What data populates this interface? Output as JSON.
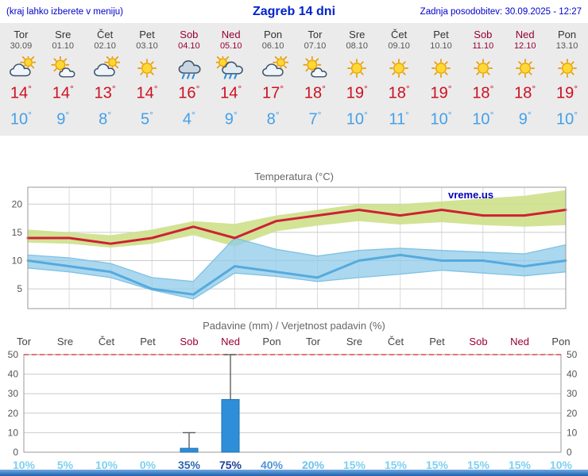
{
  "header": {
    "hint": "(kraj lahko izberete v meniju)",
    "title": "Zagreb 14 dni",
    "updated": "Zadnja posodobitev: 30.09.2025 - 12:27"
  },
  "units": {
    "degree": "°"
  },
  "colors": {
    "accent_blue": "#0000CC",
    "weekend": "#990033",
    "high_temp": "#CC1122",
    "low_temp": "#44A0E8",
    "max_line": "#CC2233",
    "max_band": "#CDE08A",
    "min_line": "#55AADF",
    "min_band": "#8FCBE8",
    "bar_fill": "#2E8FD8",
    "bar_stroke": "#1A6FB5",
    "limit_line": "#E04848",
    "watermark_blue": "#0000BB"
  },
  "forecast": {
    "days": [
      {
        "name": "Tor",
        "date": "30.09",
        "icon": "cloud-sun",
        "high": 14,
        "low": 10,
        "weekend": false
      },
      {
        "name": "Sre",
        "date": "01.10",
        "icon": "sun-cloud",
        "high": 14,
        "low": 9,
        "weekend": false
      },
      {
        "name": "Čet",
        "date": "02.10",
        "icon": "cloud-sun",
        "high": 13,
        "low": 8,
        "weekend": false
      },
      {
        "name": "Pet",
        "date": "03.10",
        "icon": "sun",
        "high": 14,
        "low": 5,
        "weekend": false
      },
      {
        "name": "Sob",
        "date": "04.10",
        "icon": "rain",
        "high": 16,
        "low": 4,
        "weekend": true
      },
      {
        "name": "Ned",
        "date": "05.10",
        "icon": "rain-sun",
        "high": 14,
        "low": 9,
        "weekend": true
      },
      {
        "name": "Pon",
        "date": "06.10",
        "icon": "cloud-sun",
        "high": 17,
        "low": 8,
        "weekend": false
      },
      {
        "name": "Tor",
        "date": "07.10",
        "icon": "sun-cloud",
        "high": 18,
        "low": 7,
        "weekend": false
      },
      {
        "name": "Sre",
        "date": "08.10",
        "icon": "sun",
        "high": 19,
        "low": 10,
        "weekend": false
      },
      {
        "name": "Čet",
        "date": "09.10",
        "icon": "sun",
        "high": 18,
        "low": 11,
        "weekend": false
      },
      {
        "name": "Pet",
        "date": "10.10",
        "icon": "sun",
        "high": 19,
        "low": 10,
        "weekend": false
      },
      {
        "name": "Sob",
        "date": "11.10",
        "icon": "sun",
        "high": 18,
        "low": 10,
        "weekend": true
      },
      {
        "name": "Ned",
        "date": "12.10",
        "icon": "sun",
        "high": 18,
        "low": 9,
        "weekend": true
      },
      {
        "name": "Pon",
        "date": "13.10",
        "icon": "sun",
        "high": 19,
        "low": 10,
        "weekend": false
      }
    ]
  },
  "chart_data": [
    {
      "type": "line",
      "title": "Temperatura (°C)",
      "watermark": "vreme.us",
      "categories": [
        "Tor",
        "Sre",
        "Čet",
        "Pet",
        "Sob",
        "Ned",
        "Pon",
        "Tor",
        "Sre",
        "Čet",
        "Pet",
        "Sob",
        "Ned",
        "Pon"
      ],
      "ylim": [
        1.5,
        23
      ],
      "yticks": [
        5,
        10,
        15,
        20
      ],
      "grid": true,
      "legend": "none",
      "series": [
        {
          "name": "max",
          "values": [
            14,
            14,
            13,
            14,
            16,
            14,
            17,
            18,
            19,
            18,
            19,
            18,
            18,
            19
          ]
        },
        {
          "name": "max_band_upper",
          "values": [
            15.5,
            15,
            14.5,
            15.5,
            17,
            16.5,
            18,
            19,
            20,
            20,
            20.5,
            21,
            21.5,
            22.5
          ]
        },
        {
          "name": "max_band_lower",
          "values": [
            13.2,
            13,
            12.3,
            13,
            14.5,
            12.5,
            15.2,
            16.2,
            17,
            16.4,
            16.8,
            16.3,
            16,
            16.3
          ]
        },
        {
          "name": "min",
          "values": [
            10,
            9,
            8,
            5,
            4,
            9,
            8,
            7,
            10,
            11,
            10,
            10,
            9,
            10
          ]
        },
        {
          "name": "min_band_upper",
          "values": [
            11,
            10.5,
            9.5,
            7,
            6.3,
            14,
            12,
            10.8,
            11.8,
            12.2,
            11.8,
            11.5,
            11.2,
            12.8
          ]
        },
        {
          "name": "min_band_lower",
          "values": [
            8.7,
            8,
            7,
            4.8,
            3.2,
            7.8,
            7.2,
            6.3,
            7,
            7.6,
            8.3,
            7.8,
            7.3,
            8
          ]
        }
      ]
    },
    {
      "type": "bar",
      "title": "Padavine (mm) / Verjetnost padavin (%)",
      "categories": [
        "Tor",
        "Sre",
        "Čet",
        "Pet",
        "Sob",
        "Ned",
        "Pon",
        "Tor",
        "Sre",
        "Čet",
        "Pet",
        "Sob",
        "Ned",
        "Pon"
      ],
      "ylim": [
        0,
        50
      ],
      "yticks": [
        0,
        10,
        20,
        30,
        40,
        50
      ],
      "precip_mm": [
        0,
        0,
        0,
        0,
        2,
        27,
        0,
        0,
        0,
        0,
        0,
        0,
        0,
        0
      ],
      "precip_max_mm": [
        0,
        0,
        0,
        0,
        10,
        50,
        0,
        0,
        0,
        0,
        0,
        0,
        0,
        0
      ],
      "probability": [
        {
          "text": "10%",
          "color": "#7CD0F0"
        },
        {
          "text": "5%",
          "color": "#7CD0F0"
        },
        {
          "text": "10%",
          "color": "#7CD0F0"
        },
        {
          "text": "0%",
          "color": "#7CD0F0"
        },
        {
          "text": "35%",
          "color": "#2E66B0"
        },
        {
          "text": "75%",
          "color": "#1D3F97"
        },
        {
          "text": "40%",
          "color": "#4F95D4"
        },
        {
          "text": "20%",
          "color": "#6FC2EA"
        },
        {
          "text": "15%",
          "color": "#7CD0F0"
        },
        {
          "text": "15%",
          "color": "#7CD0F0"
        },
        {
          "text": "15%",
          "color": "#7CD0F0"
        },
        {
          "text": "15%",
          "color": "#7CD0F0"
        },
        {
          "text": "15%",
          "color": "#7CD0F0"
        },
        {
          "text": "10%",
          "color": "#7CD0F0"
        }
      ]
    }
  ]
}
